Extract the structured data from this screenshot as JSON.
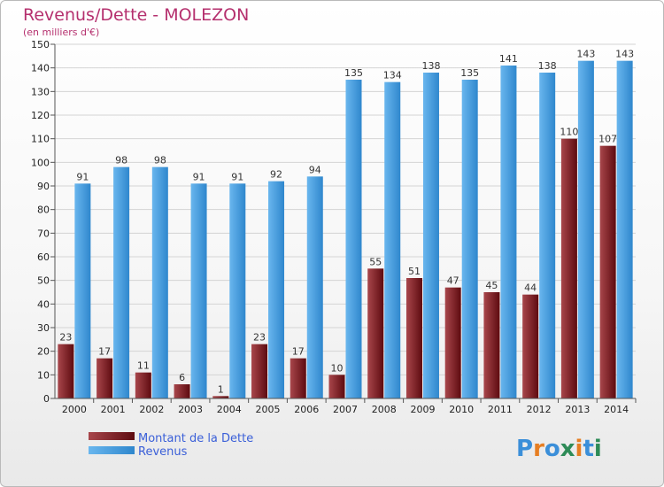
{
  "chart_data": {
    "type": "bar",
    "title": "Revenus/Dette - MOLEZON",
    "subtitle": "(en milliers d'€)",
    "categories": [
      "2000",
      "2001",
      "2002",
      "2003",
      "2004",
      "2005",
      "2006",
      "2007",
      "2008",
      "2009",
      "2010",
      "2011",
      "2012",
      "2013",
      "2014"
    ],
    "series": [
      {
        "name": "Montant de la Dette",
        "color": "#6b1015",
        "values": [
          23,
          17,
          11,
          6,
          1,
          23,
          17,
          10,
          55,
          51,
          47,
          45,
          44,
          110,
          107
        ]
      },
      {
        "name": "Revenus",
        "color": "#3a95d8",
        "values": [
          91,
          98,
          98,
          91,
          91,
          92,
          94,
          135,
          134,
          138,
          135,
          141,
          138,
          143,
          143
        ]
      }
    ],
    "ylim": [
      0,
      150
    ],
    "yticks": [
      0,
      10,
      20,
      30,
      40,
      50,
      60,
      70,
      80,
      90,
      100,
      110,
      120,
      130,
      140,
      150
    ],
    "grid": true,
    "legend": "bottom-left"
  },
  "logo": {
    "letters": [
      "P",
      "r",
      "o",
      "x",
      "i",
      "t",
      "i"
    ],
    "colors": [
      "#3b8fd9",
      "#e67e22",
      "#3b8fd9",
      "#2e8b57",
      "#e67e22",
      "#3b8fd9",
      "#2e8b57"
    ]
  }
}
